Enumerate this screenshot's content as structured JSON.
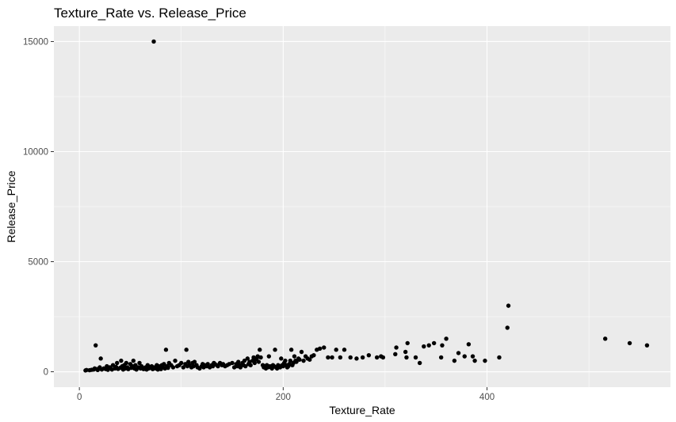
{
  "chart_data": {
    "type": "scatter",
    "title": "Texture_Rate vs. Release_Price",
    "xlabel": "Texture_Rate",
    "ylabel": "Release_Price",
    "xlim": [
      -25,
      580
    ],
    "ylim": [
      -700,
      15700
    ],
    "x_ticks": [
      0,
      200,
      400
    ],
    "x_tick_labels": [
      "0",
      "200",
      "400"
    ],
    "x_minor": [
      100,
      300,
      500
    ],
    "y_ticks": [
      0,
      5000,
      10000,
      15000
    ],
    "y_tick_labels": [
      "0",
      "5000",
      "10000",
      "15000"
    ],
    "y_minor": [
      2500,
      7500,
      12500
    ],
    "grid": true,
    "colors": {
      "panel": "#ebebeb",
      "grid": "#ffffff",
      "point": "#000000"
    },
    "points": [
      [
        6,
        60
      ],
      [
        7,
        80
      ],
      [
        10,
        70
      ],
      [
        12,
        90
      ],
      [
        14,
        100
      ],
      [
        15,
        150
      ],
      [
        16,
        1200
      ],
      [
        17,
        120
      ],
      [
        18,
        80
      ],
      [
        20,
        200
      ],
      [
        21,
        600
      ],
      [
        22,
        100
      ],
      [
        24,
        150
      ],
      [
        26,
        120
      ],
      [
        27,
        250
      ],
      [
        28,
        90
      ],
      [
        30,
        200
      ],
      [
        32,
        100
      ],
      [
        33,
        300
      ],
      [
        35,
        150
      ],
      [
        36,
        220
      ],
      [
        37,
        400
      ],
      [
        38,
        130
      ],
      [
        40,
        180
      ],
      [
        41,
        500
      ],
      [
        42,
        250
      ],
      [
        43,
        100
      ],
      [
        44,
        300
      ],
      [
        45,
        150
      ],
      [
        46,
        400
      ],
      [
        47,
        200
      ],
      [
        48,
        120
      ],
      [
        50,
        350
      ],
      [
        51,
        180
      ],
      [
        52,
        250
      ],
      [
        53,
        500
      ],
      [
        54,
        150
      ],
      [
        55,
        300
      ],
      [
        56,
        100
      ],
      [
        58,
        200
      ],
      [
        59,
        400
      ],
      [
        60,
        150
      ],
      [
        61,
        250
      ],
      [
        62,
        180
      ],
      [
        63,
        120
      ],
      [
        65,
        200
      ],
      [
        66,
        100
      ],
      [
        67,
        300
      ],
      [
        68,
        150
      ],
      [
        69,
        220
      ],
      [
        70,
        180
      ],
      [
        71,
        250
      ],
      [
        72,
        120
      ],
      [
        73,
        15000
      ],
      [
        74,
        200
      ],
      [
        75,
        150
      ],
      [
        76,
        300
      ],
      [
        77,
        100
      ],
      [
        78,
        250
      ],
      [
        79,
        180
      ],
      [
        80,
        120
      ],
      [
        81,
        300
      ],
      [
        82,
        200
      ],
      [
        83,
        350
      ],
      [
        84,
        150
      ],
      [
        85,
        1000
      ],
      [
        86,
        250
      ],
      [
        87,
        180
      ],
      [
        88,
        400
      ],
      [
        90,
        300
      ],
      [
        92,
        200
      ],
      [
        94,
        500
      ],
      [
        96,
        250
      ],
      [
        98,
        300
      ],
      [
        100,
        400
      ],
      [
        102,
        200
      ],
      [
        104,
        350
      ],
      [
        105,
        1000
      ],
      [
        106,
        250
      ],
      [
        107,
        450
      ],
      [
        108,
        300
      ],
      [
        110,
        200
      ],
      [
        111,
        400
      ],
      [
        112,
        250
      ],
      [
        113,
        450
      ],
      [
        115,
        300
      ],
      [
        116,
        200
      ],
      [
        118,
        150
      ],
      [
        120,
        250
      ],
      [
        121,
        350
      ],
      [
        122,
        200
      ],
      [
        123,
        300
      ],
      [
        125,
        250
      ],
      [
        126,
        350
      ],
      [
        128,
        200
      ],
      [
        130,
        300
      ],
      [
        131,
        250
      ],
      [
        132,
        400
      ],
      [
        133,
        350
      ],
      [
        135,
        300
      ],
      [
        136,
        250
      ],
      [
        138,
        400
      ],
      [
        140,
        300
      ],
      [
        141,
        350
      ],
      [
        143,
        250
      ],
      [
        145,
        300
      ],
      [
        147,
        350
      ],
      [
        150,
        400
      ],
      [
        152,
        200
      ],
      [
        154,
        350
      ],
      [
        155,
        250
      ],
      [
        156,
        450
      ],
      [
        157,
        300
      ],
      [
        158,
        200
      ],
      [
        160,
        400
      ],
      [
        161,
        300
      ],
      [
        162,
        500
      ],
      [
        163,
        250
      ],
      [
        165,
        600
      ],
      [
        166,
        350
      ],
      [
        167,
        450
      ],
      [
        168,
        300
      ],
      [
        170,
        500
      ],
      [
        171,
        650
      ],
      [
        172,
        400
      ],
      [
        173,
        550
      ],
      [
        174,
        600
      ],
      [
        175,
        700
      ],
      [
        176,
        450
      ],
      [
        177,
        1000
      ],
      [
        178,
        650
      ],
      [
        180,
        300
      ],
      [
        181,
        200
      ],
      [
        182,
        250
      ],
      [
        183,
        150
      ],
      [
        184,
        300
      ],
      [
        185,
        200
      ],
      [
        186,
        700
      ],
      [
        187,
        250
      ],
      [
        188,
        200
      ],
      [
        189,
        150
      ],
      [
        190,
        300
      ],
      [
        191,
        250
      ],
      [
        192,
        1000
      ],
      [
        193,
        200
      ],
      [
        194,
        150
      ],
      [
        195,
        300
      ],
      [
        196,
        250
      ],
      [
        197,
        200
      ],
      [
        198,
        600
      ],
      [
        199,
        300
      ],
      [
        200,
        250
      ],
      [
        201,
        400
      ],
      [
        202,
        500
      ],
      [
        203,
        300
      ],
      [
        204,
        200
      ],
      [
        205,
        250
      ],
      [
        206,
        350
      ],
      [
        207,
        500
      ],
      [
        208,
        1000
      ],
      [
        209,
        300
      ],
      [
        210,
        400
      ],
      [
        211,
        700
      ],
      [
        212,
        500
      ],
      [
        213,
        450
      ],
      [
        215,
        600
      ],
      [
        216,
        550
      ],
      [
        218,
        900
      ],
      [
        220,
        500
      ],
      [
        222,
        700
      ],
      [
        224,
        600
      ],
      [
        226,
        550
      ],
      [
        228,
        700
      ],
      [
        230,
        750
      ],
      [
        233,
        1000
      ],
      [
        236,
        1050
      ],
      [
        240,
        1100
      ],
      [
        244,
        650
      ],
      [
        248,
        650
      ],
      [
        252,
        1000
      ],
      [
        256,
        650
      ],
      [
        260,
        1000
      ],
      [
        266,
        650
      ],
      [
        272,
        600
      ],
      [
        278,
        650
      ],
      [
        284,
        750
      ],
      [
        292,
        650
      ],
      [
        296,
        700
      ],
      [
        298,
        650
      ],
      [
        310,
        800
      ],
      [
        311,
        1100
      ],
      [
        320,
        900
      ],
      [
        321,
        650
      ],
      [
        322,
        1300
      ],
      [
        330,
        650
      ],
      [
        334,
        400
      ],
      [
        338,
        1150
      ],
      [
        343,
        1200
      ],
      [
        348,
        1300
      ],
      [
        355,
        650
      ],
      [
        356,
        1200
      ],
      [
        360,
        1500
      ],
      [
        368,
        500
      ],
      [
        372,
        850
      ],
      [
        378,
        700
      ],
      [
        382,
        1250
      ],
      [
        386,
        700
      ],
      [
        388,
        500
      ],
      [
        398,
        500
      ],
      [
        412,
        650
      ],
      [
        420,
        2000
      ],
      [
        421,
        3000
      ],
      [
        516,
        1500
      ],
      [
        540,
        1300
      ],
      [
        557,
        1200
      ]
    ]
  }
}
